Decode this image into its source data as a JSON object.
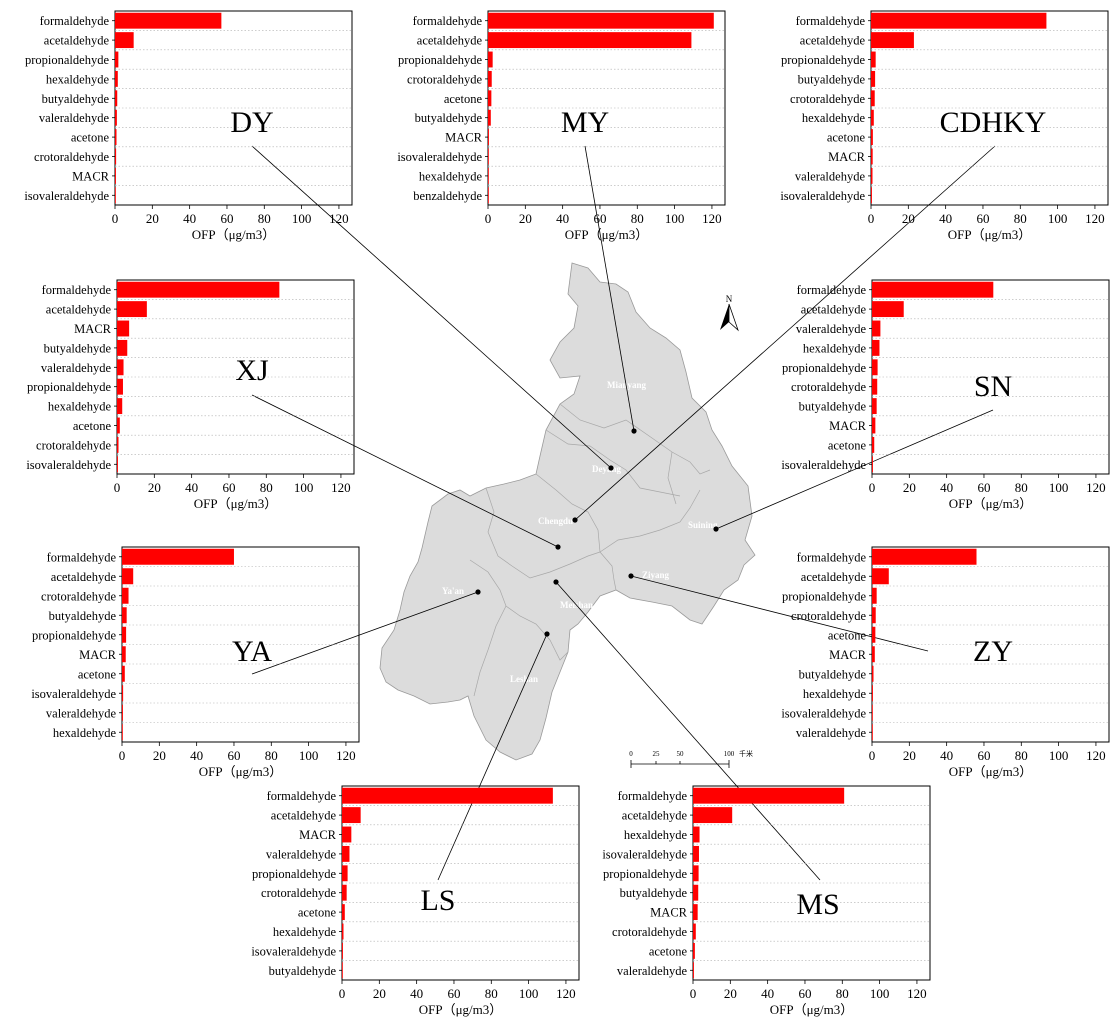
{
  "colors": {
    "bar": "#ff0000",
    "map_fill": "#dcdcdc",
    "map_stroke": "#9a9a9a",
    "connector": "#000000"
  },
  "map": {
    "cities": [
      "Mianyang",
      "Deyang",
      "Chengdu",
      "Suining",
      "Ziyang",
      "Ya'an",
      "Meishan",
      "Leshan"
    ],
    "north_label": "N",
    "scale_ticks": [
      "0",
      "25",
      "50",
      "100"
    ],
    "scale_unit": "千米"
  },
  "chart_data": [
    {
      "type": "bar",
      "orientation": "horizontal",
      "site": "DY",
      "xlabel": "OFP（μg/m3）",
      "xlim": [
        0,
        120
      ],
      "xticks": [
        0,
        20,
        40,
        60,
        80,
        100,
        120
      ],
      "categories": [
        "formaldehyde",
        "acetaldehyde",
        "propionaldehyde",
        "hexaldehyde",
        "butyaldehyde",
        "valeraldehyde",
        "acetone",
        "crotoraldehyde",
        "MACR",
        "isovaleraldehyde"
      ],
      "values": [
        57,
        10,
        1.8,
        1.5,
        1.2,
        1.0,
        0.8,
        0.6,
        0.5,
        0.3
      ]
    },
    {
      "type": "bar",
      "orientation": "horizontal",
      "site": "MY",
      "xlabel": "OFP（μg/m3）",
      "xlim": [
        0,
        120
      ],
      "xticks": [
        0,
        20,
        40,
        60,
        80,
        100,
        120
      ],
      "categories": [
        "formaldehyde",
        "acetaldehyde",
        "propionaldehyde",
        "crotoraldehyde",
        "acetone",
        "butyaldehyde",
        "MACR",
        "isovaleraldehyde",
        "hexaldehyde",
        "benzaldehyde"
      ],
      "values": [
        121,
        109,
        2.5,
        2.0,
        1.8,
        1.5,
        0.5,
        0.4,
        0.3,
        0.2
      ]
    },
    {
      "type": "bar",
      "orientation": "horizontal",
      "site": "CDHKY",
      "xlabel": "OFP（μg/m3）",
      "xlim": [
        0,
        120
      ],
      "xticks": [
        0,
        20,
        40,
        60,
        80,
        100,
        120
      ],
      "categories": [
        "formaldehyde",
        "acetaldehyde",
        "propionaldehyde",
        "butyaldehyde",
        "crotoraldehyde",
        "hexaldehyde",
        "acetone",
        "MACR",
        "valeraldehyde",
        "isovaleraldehyde"
      ],
      "values": [
        94,
        23,
        2.5,
        2.2,
        2.0,
        1.5,
        1.0,
        0.9,
        0.8,
        0.5
      ]
    },
    {
      "type": "bar",
      "orientation": "horizontal",
      "site": "XJ",
      "xlabel": "OFP（μg/m3）",
      "xlim": [
        0,
        120
      ],
      "xticks": [
        0,
        20,
        40,
        60,
        80,
        100,
        120
      ],
      "categories": [
        "formaldehyde",
        "acetaldehyde",
        "MACR",
        "butyaldehyde",
        "valeraldehyde",
        "propionaldehyde",
        "hexaldehyde",
        "acetone",
        "crotoraldehyde",
        "isovaleraldehyde"
      ],
      "values": [
        87,
        16,
        6.5,
        5.5,
        3.5,
        3.2,
        2.8,
        1.5,
        0.8,
        0.5
      ]
    },
    {
      "type": "bar",
      "orientation": "horizontal",
      "site": "SN",
      "xlabel": "OFP（μg/m3）",
      "xlim": [
        0,
        120
      ],
      "xticks": [
        0,
        20,
        40,
        60,
        80,
        100,
        120
      ],
      "categories": [
        "formaldehyde",
        "acetaldehyde",
        "valeraldehyde",
        "hexaldehyde",
        "propionaldehyde",
        "crotoraldehyde",
        "butyaldehyde",
        "MACR",
        "acetone",
        "isovaleraldehyde"
      ],
      "values": [
        65,
        17,
        4.5,
        4.0,
        3.0,
        2.8,
        2.5,
        1.8,
        1.2,
        0.5
      ]
    },
    {
      "type": "bar",
      "orientation": "horizontal",
      "site": "YA",
      "xlabel": "OFP（μg/m3）",
      "xlim": [
        0,
        120
      ],
      "xticks": [
        0,
        20,
        40,
        60,
        80,
        100,
        120
      ],
      "categories": [
        "formaldehyde",
        "acetaldehyde",
        "crotoraldehyde",
        "butyaldehyde",
        "propionaldehyde",
        "MACR",
        "acetone",
        "isovaleraldehyde",
        "valeraldehyde",
        "hexaldehyde"
      ],
      "values": [
        60,
        6,
        3.5,
        2.5,
        2.2,
        2.0,
        1.5,
        0.6,
        0.5,
        0.3
      ]
    },
    {
      "type": "bar",
      "orientation": "horizontal",
      "site": "ZY",
      "xlabel": "OFP（μg/m3）",
      "xlim": [
        0,
        120
      ],
      "xticks": [
        0,
        20,
        40,
        60,
        80,
        100,
        120
      ],
      "categories": [
        "formaldehyde",
        "acetaldehyde",
        "propionaldehyde",
        "crotoraldehyde",
        "acetone",
        "MACR",
        "butyaldehyde",
        "hexaldehyde",
        "isovaleraldehyde",
        "valeraldehyde"
      ],
      "values": [
        56,
        9,
        2.5,
        2.0,
        1.8,
        1.5,
        0.8,
        0.5,
        0.4,
        0.3
      ]
    },
    {
      "type": "bar",
      "orientation": "horizontal",
      "site": "LS",
      "xlabel": "OFP（μg/m3）",
      "xlim": [
        0,
        120
      ],
      "xticks": [
        0,
        20,
        40,
        60,
        80,
        100,
        120
      ],
      "categories": [
        "formaldehyde",
        "acetaldehyde",
        "MACR",
        "valeraldehyde",
        "propionaldehyde",
        "crotoraldehyde",
        "acetone",
        "hexaldehyde",
        "isovaleraldehyde",
        "butyaldehyde"
      ],
      "values": [
        113,
        10,
        5,
        4,
        3,
        2.5,
        1.5,
        0.8,
        0.5,
        0.3
      ]
    },
    {
      "type": "bar",
      "orientation": "horizontal",
      "site": "MS",
      "xlabel": "OFP（μg/m3）",
      "xlim": [
        0,
        120
      ],
      "xticks": [
        0,
        20,
        40,
        60,
        80,
        100,
        120
      ],
      "categories": [
        "formaldehyde",
        "acetaldehyde",
        "hexaldehyde",
        "isovaleraldehyde",
        "propionaldehyde",
        "butyaldehyde",
        "MACR",
        "crotoraldehyde",
        "acetone",
        "valeraldehyde"
      ],
      "values": [
        81,
        21,
        3.5,
        3.2,
        3.0,
        2.8,
        2.5,
        1.5,
        1.0,
        0.5
      ]
    }
  ]
}
